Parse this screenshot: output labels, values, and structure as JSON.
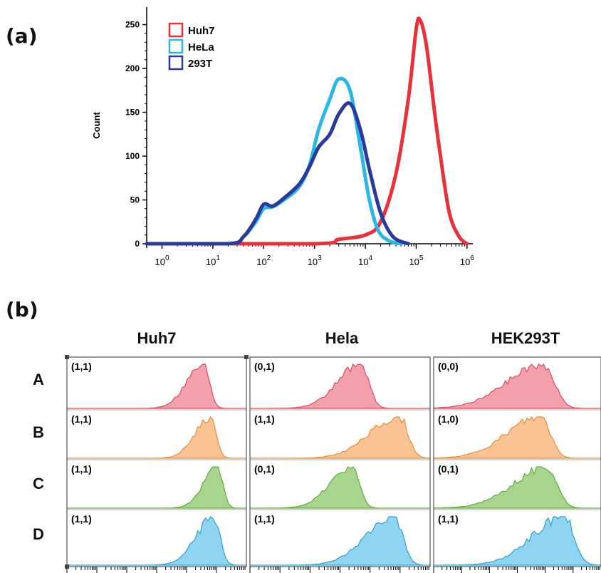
{
  "panel_a_label": "(a)",
  "panel_b_label": "(b)",
  "colors": {
    "Huh7": "#e8323a",
    "HeLa": "#2ab7e6",
    "293T": "#283a9c"
  },
  "chart_data": [
    {
      "type": "line",
      "ylabel": "Count",
      "xscale": "log",
      "xlim": [
        0.5,
        1300000
      ],
      "ylim": [
        0,
        270
      ],
      "yticks": [
        "0",
        "50",
        "100",
        "150",
        "200",
        "250"
      ],
      "xticks": [
        {
          "base": "10",
          "exp": "0"
        },
        {
          "base": "10",
          "exp": "1"
        },
        {
          "base": "10",
          "exp": "2"
        },
        {
          "base": "10",
          "exp": "3"
        },
        {
          "base": "10",
          "exp": "4"
        },
        {
          "base": "10",
          "exp": "5"
        },
        {
          "base": "10",
          "exp": "6"
        }
      ],
      "legend_position": "top-left",
      "series": [
        {
          "name": "Huh7",
          "color": "#e8323a",
          "x": [
            0.5,
            1000,
            3000,
            10000,
            20000,
            40000,
            70000,
            100000,
            120000,
            160000,
            230000,
            300000,
            450000,
            700000,
            1000000
          ],
          "y": [
            0,
            0,
            5,
            10,
            25,
            80,
            165,
            245,
            255,
            225,
            150,
            100,
            35,
            8,
            0
          ]
        },
        {
          "name": "HeLa",
          "color": "#2ab7e6",
          "x": [
            0.5,
            20,
            40,
            70,
            100,
            150,
            250,
            500,
            800,
            1200,
            2000,
            3000,
            5000,
            8000,
            12000,
            18000,
            30000,
            50000
          ],
          "y": [
            0,
            0,
            8,
            25,
            40,
            42,
            50,
            65,
            90,
            130,
            165,
            188,
            175,
            110,
            50,
            15,
            3,
            0
          ]
        },
        {
          "name": "293T",
          "color": "#283a9c",
          "x": [
            0.5,
            20,
            40,
            70,
            100,
            150,
            250,
            500,
            800,
            1200,
            2000,
            3000,
            5000,
            8000,
            12000,
            20000,
            35000,
            70000
          ],
          "y": [
            0,
            0,
            8,
            28,
            45,
            43,
            52,
            68,
            88,
            110,
            125,
            148,
            160,
            130,
            85,
            35,
            8,
            0
          ]
        }
      ]
    },
    {
      "type": "area",
      "columns": [
        "Huh7",
        "Hela",
        "HEK293T"
      ],
      "rows": [
        "A",
        "B",
        "C",
        "D"
      ],
      "row_colors": {
        "A": {
          "fill": "#f2a0ab",
          "stroke": "#e04a5e"
        },
        "B": {
          "fill": "#f9c394",
          "stroke": "#ea8d3c"
        },
        "C": {
          "fill": "#a7d58e",
          "stroke": "#5fae3c"
        },
        "D": {
          "fill": "#8fd4f0",
          "stroke": "#2aa3d3"
        }
      },
      "cells": [
        [
          {
            "label": "(1,1)",
            "peak": 0.76,
            "width": 0.13,
            "skew": 0.5
          },
          {
            "label": "(0,1)",
            "peak": 0.62,
            "width": 0.16,
            "skew": 0.7
          },
          {
            "label": "(0,0)",
            "peak": 0.66,
            "width": 0.24,
            "skew": 0.9
          }
        ],
        [
          {
            "label": "(1,1)",
            "peak": 0.8,
            "width": 0.12,
            "skew": 0.5
          },
          {
            "label": "(1,1)",
            "peak": 0.83,
            "width": 0.18,
            "skew": 0.9
          },
          {
            "label": "(1,0)",
            "peak": 0.64,
            "width": 0.22,
            "skew": 0.9
          }
        ],
        [
          {
            "label": "(1,1)",
            "peak": 0.84,
            "width": 0.11,
            "skew": 0.5
          },
          {
            "label": "(0,1)",
            "peak": 0.57,
            "width": 0.15,
            "skew": 0.7
          },
          {
            "label": "(0,1)",
            "peak": 0.68,
            "width": 0.22,
            "skew": 0.9
          }
        ],
        [
          {
            "label": "(1,1)",
            "peak": 0.82,
            "width": 0.13,
            "skew": 0.6
          },
          {
            "label": "(1,1)",
            "peak": 0.8,
            "width": 0.18,
            "skew": 0.8
          },
          {
            "label": "(1,1)",
            "peak": 0.78,
            "width": 0.22,
            "skew": 0.8
          }
        ]
      ]
    }
  ]
}
